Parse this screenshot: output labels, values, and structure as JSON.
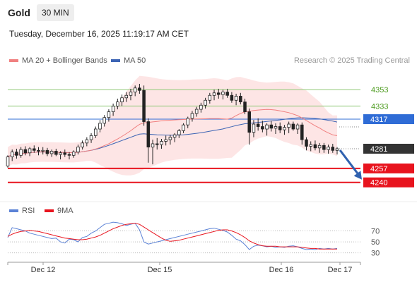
{
  "header": {
    "instrument": "Gold",
    "timeframe_tab": "30 MIN",
    "datetime": "Tuesday, December 16, 2025 11:19:17 AM CET"
  },
  "legend": {
    "ma20_label": "MA 20 + Bollinger Bands",
    "ma50_label": "MA 50",
    "copyright": "Research © 2025 Trading Central",
    "rsi_label": "RSI",
    "rsi_ma_label": "9MA"
  },
  "colors": {
    "candle": "#222222",
    "ma20": "#f08080",
    "bollinger_fill": "#fde2e2",
    "ma50": "#3c64b4",
    "resistance": "#90c978",
    "resistance_text": "#4a9a1c",
    "pivot": "#2f6cd6",
    "support": "#e8141e",
    "current_price": "#333333",
    "rsi": "#5b82d6",
    "rsi_ma": "#e8141e",
    "arrow": "#3062b0"
  },
  "chart_data": [
    {
      "type": "candlestick",
      "title": "",
      "x_ticks": [
        "Dec 12",
        "Dec 15",
        "Dec 16",
        "Dec 17"
      ],
      "y_range": [
        4220,
        4378
      ],
      "levels": [
        {
          "value": 4353,
          "label": "4353",
          "role": "resistance"
        },
        {
          "value": 4333,
          "label": "4333",
          "role": "resistance"
        },
        {
          "value": 4317,
          "label": "4317",
          "role": "pivot"
        },
        {
          "value": 4257,
          "label": "4257",
          "role": "support"
        },
        {
          "value": 4240,
          "label": "4240",
          "role": "support"
        }
      ],
      "current_price": {
        "value": 4281,
        "label": "4281"
      },
      "projection": {
        "direction": "down",
        "target": 4240
      },
      "ohlc": [
        [
          4260,
          4273,
          4258,
          4271
        ],
        [
          4271,
          4280,
          4266,
          4277
        ],
        [
          4277,
          4281,
          4269,
          4273
        ],
        [
          4273,
          4283,
          4270,
          4280
        ],
        [
          4280,
          4284,
          4273,
          4276
        ],
        [
          4276,
          4283,
          4272,
          4281
        ],
        [
          4281,
          4285,
          4276,
          4279
        ],
        [
          4279,
          4283,
          4273,
          4278
        ],
        [
          4278,
          4283,
          4274,
          4279
        ],
        [
          4279,
          4282,
          4272,
          4275
        ],
        [
          4275,
          4280,
          4271,
          4278
        ],
        [
          4278,
          4281,
          4272,
          4274
        ],
        [
          4274,
          4278,
          4268,
          4276
        ],
        [
          4276,
          4280,
          4271,
          4274
        ],
        [
          4274,
          4277,
          4268,
          4273
        ],
        [
          4273,
          4279,
          4270,
          4277
        ],
        [
          4277,
          4286,
          4274,
          4283
        ],
        [
          4283,
          4291,
          4280,
          4288
        ],
        [
          4288,
          4295,
          4284,
          4292
        ],
        [
          4292,
          4300,
          4288,
          4297
        ],
        [
          4297,
          4308,
          4294,
          4305
        ],
        [
          4305,
          4316,
          4301,
          4312
        ],
        [
          4312,
          4322,
          4308,
          4319
        ],
        [
          4319,
          4329,
          4314,
          4326
        ],
        [
          4326,
          4336,
          4321,
          4333
        ],
        [
          4333,
          4342,
          4329,
          4338
        ],
        [
          4338,
          4347,
          4333,
          4343
        ],
        [
          4343,
          4350,
          4338,
          4346
        ],
        [
          4346,
          4354,
          4340,
          4350
        ],
        [
          4350,
          4358,
          4345,
          4355
        ],
        [
          4355,
          4360,
          4348,
          4352
        ],
        [
          4352,
          4358,
          4309,
          4314
        ],
        [
          4314,
          4318,
          4264,
          4283
        ],
        [
          4283,
          4292,
          4262,
          4287
        ],
        [
          4287,
          4294,
          4280,
          4286
        ],
        [
          4286,
          4293,
          4281,
          4290
        ],
        [
          4290,
          4297,
          4285,
          4292
        ],
        [
          4292,
          4298,
          4286,
          4295
        ],
        [
          4295,
          4300,
          4289,
          4298
        ],
        [
          4298,
          4305,
          4294,
          4303
        ],
        [
          4303,
          4312,
          4300,
          4310
        ],
        [
          4310,
          4320,
          4306,
          4318
        ],
        [
          4318,
          4327,
          4314,
          4324
        ],
        [
          4324,
          4332,
          4320,
          4329
        ],
        [
          4329,
          4337,
          4325,
          4334
        ],
        [
          4334,
          4343,
          4330,
          4340
        ],
        [
          4340,
          4349,
          4336,
          4346
        ],
        [
          4346,
          4353,
          4340,
          4349
        ],
        [
          4349,
          4354,
          4342,
          4347
        ],
        [
          4347,
          4353,
          4341,
          4350
        ],
        [
          4350,
          4354,
          4343,
          4346
        ],
        [
          4346,
          4350,
          4337,
          4340
        ],
        [
          4340,
          4348,
          4334,
          4345
        ],
        [
          4345,
          4349,
          4335,
          4338
        ],
        [
          4338,
          4342,
          4323,
          4326
        ],
        [
          4326,
          4330,
          4286,
          4301
        ],
        [
          4301,
          4316,
          4295,
          4311
        ],
        [
          4311,
          4318,
          4303,
          4308
        ],
        [
          4308,
          4315,
          4301,
          4305
        ],
        [
          4305,
          4312,
          4297,
          4310
        ],
        [
          4310,
          4315,
          4302,
          4306
        ],
        [
          4306,
          4312,
          4299,
          4308
        ],
        [
          4308,
          4313,
          4300,
          4304
        ],
        [
          4304,
          4310,
          4298,
          4307
        ],
        [
          4307,
          4314,
          4300,
          4311
        ],
        [
          4311,
          4314,
          4303,
          4305
        ],
        [
          4305,
          4312,
          4299,
          4310
        ],
        [
          4310,
          4313,
          4286,
          4292
        ],
        [
          4292,
          4295,
          4279,
          4284
        ],
        [
          4284,
          4290,
          4278,
          4286
        ],
        [
          4286,
          4291,
          4279,
          4282
        ],
        [
          4282,
          4288,
          4276,
          4285
        ],
        [
          4285,
          4288,
          4276,
          4280
        ],
        [
          4280,
          4286,
          4275,
          4283
        ],
        [
          4283,
          4287,
          4276,
          4279
        ],
        [
          4279,
          4283,
          4274,
          4281
        ]
      ]
    },
    {
      "type": "line",
      "title": "RSI",
      "y_ticks": [
        70,
        50,
        30
      ],
      "y_range": [
        18,
        90
      ],
      "series": [
        {
          "name": "RSI",
          "values": [
            58,
            76,
            74,
            72,
            70,
            66,
            64,
            62,
            60,
            58,
            56,
            57,
            50,
            48,
            55,
            54,
            50,
            58,
            60,
            66,
            70,
            76,
            82,
            84,
            86,
            85,
            83,
            80,
            82,
            84,
            72,
            50,
            46,
            48,
            50,
            52,
            54,
            56,
            58,
            60,
            62,
            64,
            66,
            68,
            70,
            72,
            74,
            75,
            73,
            71,
            68,
            62,
            55,
            52,
            45,
            36,
            42,
            44,
            43,
            41,
            42,
            40,
            41,
            40,
            42,
            43,
            41,
            38,
            36,
            37,
            36,
            38,
            37,
            38,
            37,
            38
          ]
        },
        {
          "name": "9MA",
          "values": [
            60,
            64,
            67,
            69,
            70,
            71,
            70,
            69,
            67,
            65,
            63,
            61,
            59,
            57,
            56,
            55,
            54,
            54,
            55,
            57,
            59,
            62,
            66,
            70,
            74,
            77,
            80,
            82,
            83,
            84,
            82,
            77,
            72,
            67,
            62,
            57,
            53,
            51,
            52,
            53,
            55,
            57,
            59,
            61,
            63,
            65,
            67,
            69,
            71,
            72,
            72,
            70,
            67,
            63,
            58,
            52,
            48,
            45,
            43,
            42,
            42,
            42,
            41,
            41,
            41,
            41,
            41,
            40,
            39,
            38,
            38,
            37,
            37,
            37,
            37,
            37
          ]
        }
      ]
    }
  ]
}
